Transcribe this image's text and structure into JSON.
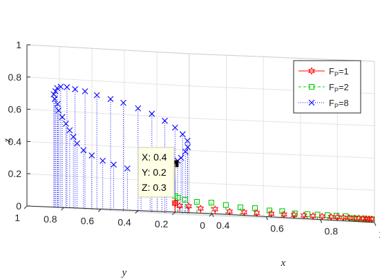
{
  "chart_data": {
    "type": "stem3-scatter",
    "axes": {
      "x": {
        "label": "x",
        "range": [
          0.4,
          1.0
        ],
        "ticks": [
          "0.4",
          "0.6",
          "0.8",
          "1"
        ]
      },
      "y": {
        "label": "y",
        "range": [
          0,
          1.0
        ],
        "ticks": [
          "0",
          "0.2",
          "0.4",
          "0.6",
          "0.8",
          "1"
        ]
      },
      "z": {
        "label": "z",
        "range": [
          0,
          1.0
        ],
        "ticks": [
          "0",
          "0.2",
          "0.4",
          "0.6",
          "0.8",
          "1"
        ]
      },
      "grid": true,
      "box": true
    },
    "legend": {
      "location": "top-right",
      "entries": [
        {
          "main": "F",
          "sub": "P",
          "tail": "=1"
        },
        {
          "main": "F",
          "sub": "P",
          "tail": "=2"
        },
        {
          "main": "F",
          "sub": "P",
          "tail": "=8"
        }
      ]
    },
    "datatip": {
      "lines": [
        "X: 0.4",
        "Y: 0.2",
        "Z: 0.3"
      ],
      "point": {
        "x": 0.4,
        "y": 0.2,
        "z": 0.3
      }
    },
    "series": [
      {
        "color": "#ff0000",
        "marker": "hexagram",
        "line_style": "solid",
        "points": [
          [
            0.4,
            0.2,
            0.06
          ],
          [
            0.4,
            0.2,
            0.05
          ],
          [
            0.41,
            0.19,
            0.04
          ],
          [
            0.43,
            0.17,
            0.04
          ],
          [
            0.46,
            0.15,
            0.03
          ],
          [
            0.5,
            0.13,
            0.03
          ],
          [
            0.54,
            0.11,
            0.02
          ],
          [
            0.58,
            0.09,
            0.02
          ],
          [
            0.62,
            0.08,
            0.02
          ],
          [
            0.66,
            0.06,
            0.02
          ],
          [
            0.7,
            0.05,
            0.02
          ],
          [
            0.73,
            0.04,
            0.02
          ],
          [
            0.76,
            0.03,
            0.02
          ],
          [
            0.79,
            0.025,
            0.02
          ],
          [
            0.82,
            0.02,
            0.02
          ],
          [
            0.85,
            0.015,
            0.02
          ],
          [
            0.87,
            0.01,
            0.02
          ],
          [
            0.89,
            0.008,
            0.02
          ],
          [
            0.91,
            0.006,
            0.02
          ],
          [
            0.93,
            0.004,
            0.02
          ],
          [
            0.945,
            0.003,
            0.02
          ],
          [
            0.96,
            0.002,
            0.02
          ],
          [
            0.97,
            0.001,
            0.02
          ],
          [
            0.98,
            0.0,
            0.02
          ],
          [
            0.99,
            0.0,
            0.02
          ]
        ]
      },
      {
        "color": "#00cc00",
        "marker": "square",
        "line_style": "dashed",
        "points": [
          [
            0.4,
            0.2,
            0.1
          ],
          [
            0.41,
            0.2,
            0.09
          ],
          [
            0.43,
            0.19,
            0.08
          ],
          [
            0.46,
            0.17,
            0.07
          ],
          [
            0.5,
            0.15,
            0.07
          ],
          [
            0.54,
            0.13,
            0.06
          ],
          [
            0.58,
            0.11,
            0.05
          ],
          [
            0.62,
            0.09,
            0.05
          ],
          [
            0.66,
            0.07,
            0.04
          ],
          [
            0.7,
            0.06,
            0.04
          ],
          [
            0.74,
            0.05,
            0.03
          ],
          [
            0.78,
            0.04,
            0.03
          ],
          [
            0.81,
            0.03,
            0.03
          ],
          [
            0.84,
            0.02,
            0.03
          ],
          [
            0.87,
            0.015,
            0.03
          ],
          [
            0.9,
            0.01,
            0.03
          ],
          [
            0.92,
            0.007,
            0.02
          ],
          [
            0.94,
            0.005,
            0.02
          ],
          [
            0.96,
            0.003,
            0.02
          ],
          [
            0.975,
            0.002,
            0.02
          ],
          [
            0.99,
            0.0,
            0.02
          ]
        ]
      },
      {
        "color": "#0000ff",
        "marker": "x",
        "line_style": "dotted",
        "points": [
          [
            0.4,
            0.2,
            0.3
          ],
          [
            0.43,
            0.23,
            0.32
          ],
          [
            0.47,
            0.27,
            0.34
          ],
          [
            0.52,
            0.32,
            0.38
          ],
          [
            0.57,
            0.38,
            0.41
          ],
          [
            0.61,
            0.44,
            0.45
          ],
          [
            0.64,
            0.51,
            0.49
          ],
          [
            0.66,
            0.58,
            0.53
          ],
          [
            0.67,
            0.65,
            0.57
          ],
          [
            0.67,
            0.72,
            0.61
          ],
          [
            0.66,
            0.78,
            0.64
          ],
          [
            0.64,
            0.83,
            0.67
          ],
          [
            0.62,
            0.87,
            0.69
          ],
          [
            0.59,
            0.9,
            0.71
          ],
          [
            0.56,
            0.92,
            0.73
          ],
          [
            0.53,
            0.93,
            0.74
          ],
          [
            0.5,
            0.93,
            0.75
          ],
          [
            0.47,
            0.92,
            0.75
          ],
          [
            0.45,
            0.91,
            0.74
          ],
          [
            0.43,
            0.89,
            0.72
          ],
          [
            0.41,
            0.87,
            0.7
          ],
          [
            0.4,
            0.85,
            0.67
          ],
          [
            0.39,
            0.82,
            0.64
          ],
          [
            0.38,
            0.8,
            0.6
          ],
          [
            0.38,
            0.78,
            0.56
          ],
          [
            0.38,
            0.76,
            0.52
          ],
          [
            0.38,
            0.74,
            0.48
          ],
          [
            0.38,
            0.72,
            0.44
          ],
          [
            0.38,
            0.7,
            0.4
          ],
          [
            0.39,
            0.68,
            0.36
          ],
          [
            0.4,
            0.65,
            0.33
          ],
          [
            0.42,
            0.62,
            0.3
          ],
          [
            0.44,
            0.59,
            0.28
          ],
          [
            0.47,
            0.56,
            0.26
          ],
          [
            0.5,
            0.53,
            0.25
          ],
          [
            0.52,
            0.51,
            0.245
          ],
          [
            0.54,
            0.5,
            0.243
          ],
          [
            0.55,
            0.49,
            0.241
          ],
          [
            0.56,
            0.48,
            0.24
          ]
        ]
      }
    ]
  }
}
